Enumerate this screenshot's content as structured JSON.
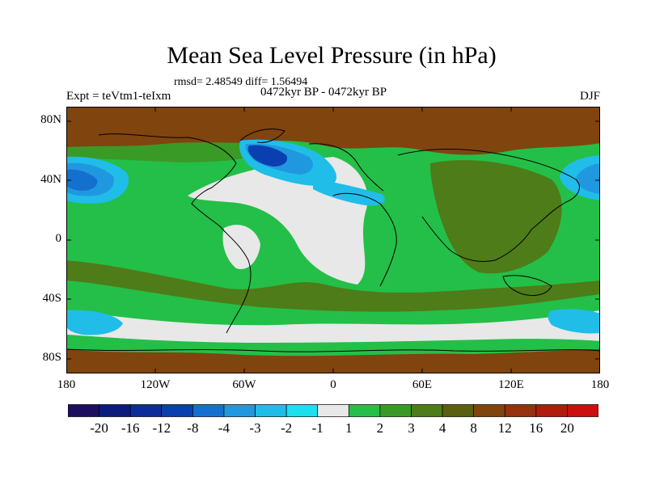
{
  "title": "Mean Sea Level Pressure (in hPa)",
  "stats_line": "rmsd= 2.48549 diff= 1.56494",
  "period": "0472kyr BP - 0472kyr BP",
  "experiment": "Expt = teVtm1-teIxm",
  "season": "DJF",
  "map": {
    "projection": "cylindrical equidistant",
    "lon_range": [
      -180,
      180
    ],
    "lat_range": [
      -90,
      90
    ]
  },
  "axes": {
    "y_ticks": [
      "80N",
      "40N",
      "0",
      "40S",
      "80S"
    ],
    "x_ticks": [
      "180",
      "120W",
      "60W",
      "0",
      "60E",
      "120E",
      "180"
    ]
  },
  "colorbar": {
    "labels": [
      "-20",
      "-16",
      "-12",
      "-8",
      "-4",
      "-3",
      "-2",
      "-1",
      "1",
      "2",
      "3",
      "4",
      "8",
      "12",
      "16",
      "20"
    ],
    "colors": [
      "#1e0e60",
      "#0c1c7c",
      "#0c2c9a",
      "#0a3fb0",
      "#1470cf",
      "#2098e0",
      "#20bde8",
      "#1ce0f0",
      "#e8e8e8",
      "#24bf48",
      "#3a9a26",
      "#4e7c18",
      "#5a6010",
      "#80440e",
      "#96300e",
      "#b01c0c",
      "#cc0e0e"
    ]
  },
  "palette": {
    "neutral": "#e8e8e8",
    "green2": "#24bf48",
    "green3": "#3a9a26",
    "olive4": "#4e7c18",
    "brown12": "#80440e",
    "blue_neg2": "#20bde8",
    "blue_neg3": "#2098e0",
    "blue_neg4": "#1470cf",
    "blue_neg8": "#0a3fb0"
  }
}
